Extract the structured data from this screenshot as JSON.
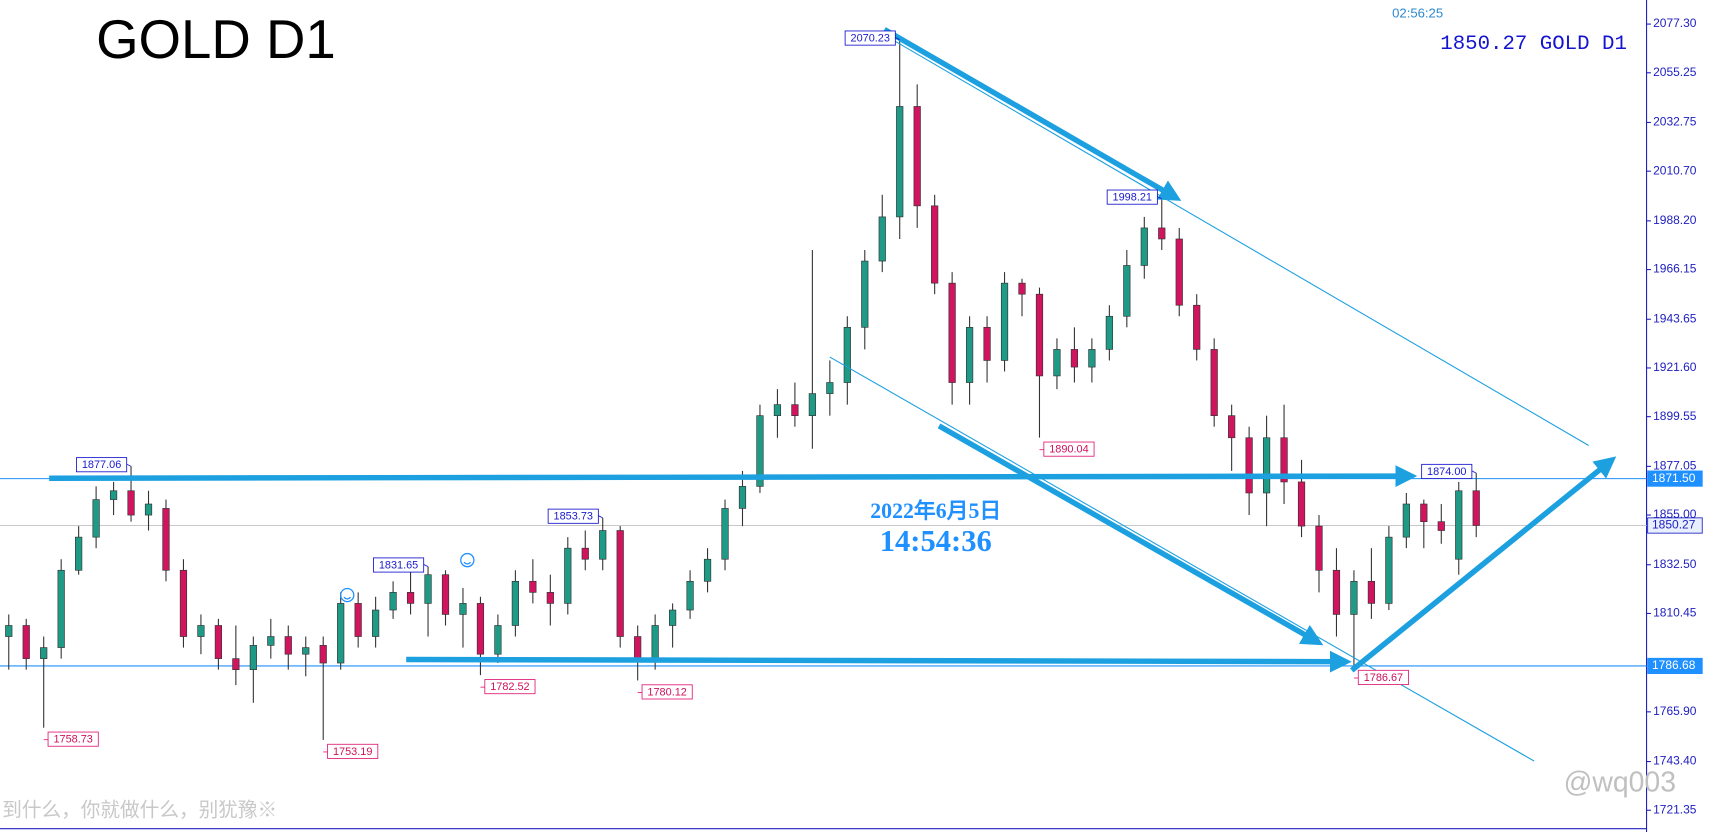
{
  "chart_data": {
    "type": "candlestick",
    "title": "GOLD D1",
    "clock": "02:56:25",
    "header": "1850.27 GOLD D1",
    "date_text": "2022年6月5日",
    "time_text": "14:54:36",
    "footer_text": "到什么，你就做什么，别犹豫※",
    "watermark": "@wq003",
    "up_color": "#1f9a86",
    "down_color": "#d0145e",
    "ylim": [
      1711.5,
      2088.2
    ],
    "yticks": [
      {
        "value": 2077.3,
        "label": "2077.30"
      },
      2055.25,
      2032.75,
      {
        "value": 2010.7,
        "label": "2010.70"
      },
      {
        "value": 1988.2,
        "label": "1988.20"
      },
      1966.15,
      1943.65,
      {
        "value": 1921.6,
        "label": "1921.60"
      },
      1899.55,
      1877.05,
      {
        "value": 1855,
        "label": "1855.00"
      },
      {
        "value": 1832.5,
        "label": "1832.50"
      },
      1810.45,
      {
        "value": 1765.9,
        "label": "1765.90"
      },
      {
        "value": 1743.4,
        "label": "1743.40"
      },
      1721.35
    ],
    "open": [
      1800,
      1805,
      1790,
      1795,
      1830,
      1845,
      1862,
      1866,
      1855,
      1858,
      1830,
      1800,
      1805,
      1790,
      1785,
      1796,
      1800,
      1792,
      1796,
      1788,
      1815,
      1800,
      1812,
      1820,
      1815,
      1828,
      1810,
      1815,
      1792,
      1805,
      1825,
      1820,
      1815,
      1840,
      1835,
      1848,
      1800,
      1790,
      1805,
      1812,
      1825,
      1835,
      1858,
      1868,
      1900,
      1905,
      1900,
      1910,
      1915,
      1940,
      1970,
      1990,
      2040,
      1995,
      1960,
      1915,
      1940,
      1925,
      1960,
      1955,
      1918,
      1930,
      1922,
      1930,
      1945,
      1968,
      1985,
      1980,
      1950,
      1930,
      1900,
      1890,
      1865,
      1890,
      1870,
      1850,
      1830,
      1810,
      1825,
      1815,
      1845,
      1860,
      1852,
      1835,
      1866
    ],
    "high": [
      1810,
      1808,
      1800,
      1835,
      1850,
      1868,
      1870,
      1877.06,
      1866,
      1862,
      1835,
      1810,
      1808,
      1805,
      1800,
      1808,
      1805,
      1800,
      1800,
      1820,
      1820,
      1818,
      1825,
      1830,
      1831.65,
      1830,
      1822,
      1818,
      1810,
      1830,
      1835,
      1828,
      1845,
      1848,
      1853.73,
      1850,
      1805,
      1810,
      1815,
      1830,
      1840,
      1862,
      1875,
      1905,
      1912,
      1915,
      1975,
      1925,
      1945,
      1975,
      2000,
      2070.23,
      2050,
      2000,
      1965,
      1945,
      1945,
      1965,
      1962,
      1958,
      1935,
      1940,
      1935,
      1950,
      1975,
      1990,
      1998.21,
      1985,
      1955,
      1935,
      1905,
      1895,
      1900,
      1905,
      1880,
      1855,
      1840,
      1830,
      1840,
      1850,
      1865,
      1862,
      1860,
      1870,
      1874
    ],
    "low": [
      1785,
      1785,
      1758.73,
      1790,
      1828,
      1840,
      1855,
      1852,
      1848,
      1825,
      1795,
      1792,
      1785,
      1778,
      1770,
      1790,
      1785,
      1782,
      1753.19,
      1785,
      1795,
      1795,
      1808,
      1810,
      1800,
      1805,
      1795,
      1782.52,
      1788,
      1800,
      1815,
      1805,
      1810,
      1830,
      1830,
      1795,
      1780.12,
      1785,
      1795,
      1808,
      1820,
      1830,
      1850,
      1865,
      1890,
      1895,
      1885,
      1900,
      1905,
      1930,
      1965,
      1980,
      1985,
      1955,
      1905,
      1905,
      1915,
      1920,
      1945,
      1890.04,
      1912,
      1915,
      1915,
      1925,
      1940,
      1962,
      1975,
      1945,
      1925,
      1895,
      1875,
      1855,
      1850,
      1860,
      1845,
      1820,
      1800,
      1786.67,
      1808,
      1812,
      1840,
      1840,
      1842,
      1828,
      1845
    ],
    "close": [
      1805,
      1790,
      1795,
      1830,
      1845,
      1862,
      1866,
      1855,
      1860,
      1830,
      1800,
      1805,
      1790,
      1785,
      1796,
      1800,
      1792,
      1795,
      1788,
      1815,
      1800,
      1812,
      1820,
      1815,
      1828,
      1810,
      1815,
      1792,
      1805,
      1825,
      1820,
      1815,
      1840,
      1835,
      1848,
      1800,
      1790,
      1805,
      1812,
      1825,
      1835,
      1858,
      1868,
      1900,
      1905,
      1900,
      1910,
      1915,
      1940,
      1970,
      1990,
      2040,
      1995,
      1960,
      1915,
      1940,
      1925,
      1960,
      1955,
      1918,
      1930,
      1922,
      1930,
      1945,
      1968,
      1985,
      1980,
      1950,
      1930,
      1900,
      1890,
      1865,
      1890,
      1870,
      1850,
      1830,
      1810,
      1825,
      1815,
      1845,
      1860,
      1852,
      1848,
      1866,
      1850.27
    ],
    "high_labels": [
      2070.23,
      1998.21,
      1877.06,
      1853.73,
      1831.65,
      {
        "value": 1874,
        "label": "1874.00"
      }
    ],
    "low_labels": [
      1890.04,
      1782.52,
      1780.12,
      1758.73,
      1753.19,
      1786.67
    ],
    "price_lines": [
      {
        "value": 1871.5,
        "label": "1871.50",
        "color": "#1e90ff"
      },
      {
        "value": 1850.27,
        "label": "1850.27",
        "color": "#c8c8c8"
      },
      {
        "value": 1786.68,
        "label": "1786.68",
        "color": "#1e90ff"
      }
    ]
  }
}
